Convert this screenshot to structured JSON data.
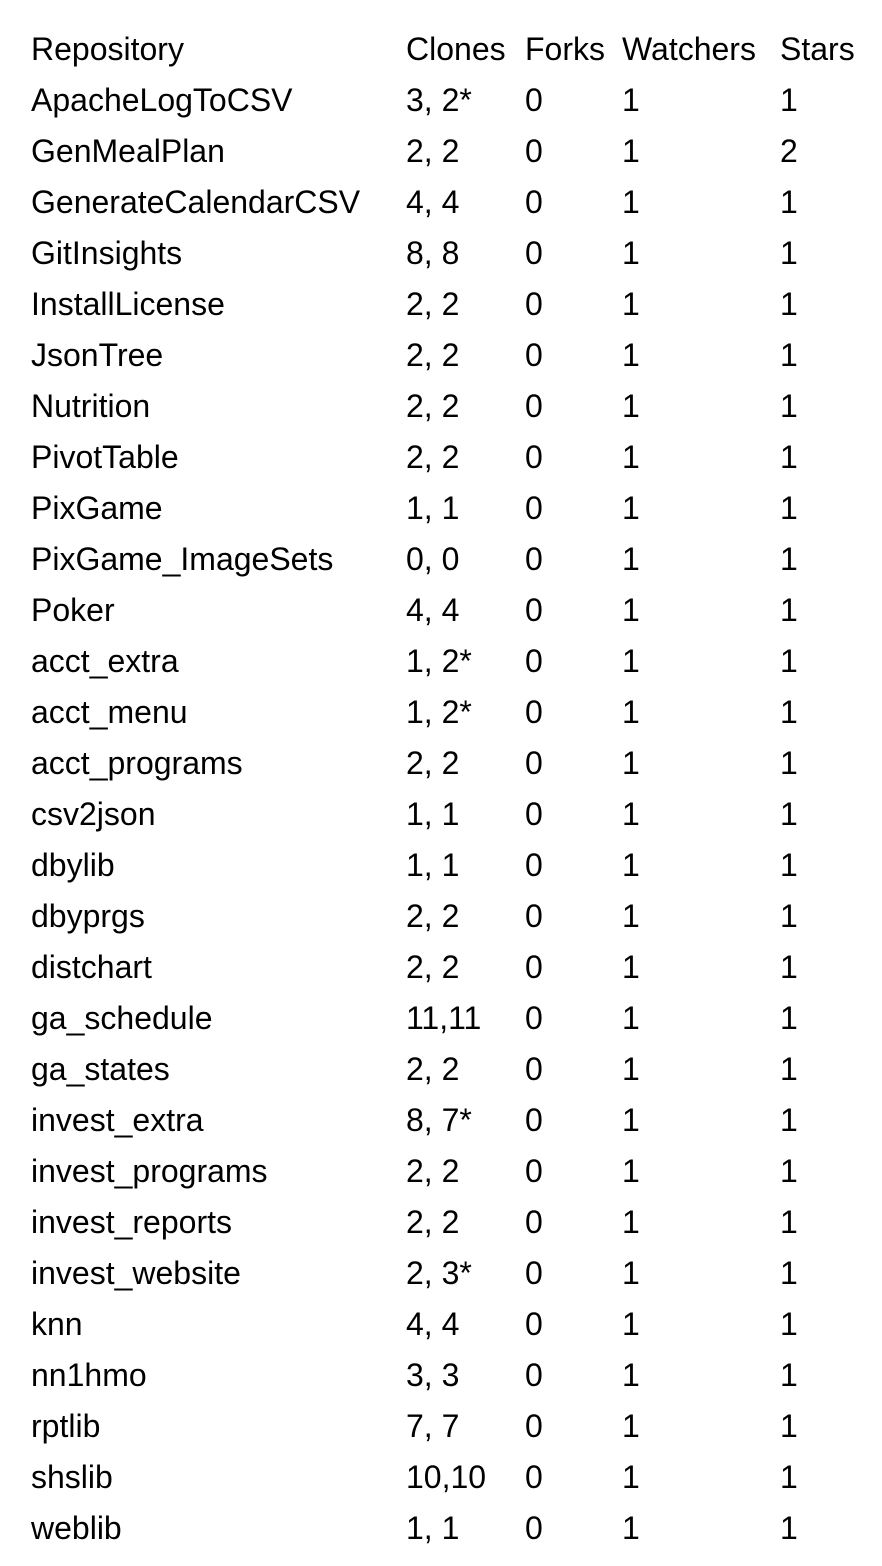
{
  "table": {
    "headers": {
      "repository": "Repository",
      "clones": "Clones",
      "forks": "Forks",
      "watchers": "Watchers",
      "stars": "Stars"
    },
    "rows": [
      {
        "repository": "ApacheLogToCSV",
        "clones": "3, 2*",
        "forks": "0",
        "watchers": "1",
        "stars": "1"
      },
      {
        "repository": "GenMealPlan",
        "clones": "2, 2",
        "forks": "0",
        "watchers": "1",
        "stars": "2"
      },
      {
        "repository": "GenerateCalendarCSV",
        "clones": "4, 4",
        "forks": "0",
        "watchers": "1",
        "stars": "1"
      },
      {
        "repository": "GitInsights",
        "clones": "8, 8",
        "forks": "0",
        "watchers": "1",
        "stars": "1"
      },
      {
        "repository": "InstallLicense",
        "clones": "2, 2",
        "forks": "0",
        "watchers": "1",
        "stars": "1"
      },
      {
        "repository": "JsonTree",
        "clones": "2, 2",
        "forks": "0",
        "watchers": "1",
        "stars": "1"
      },
      {
        "repository": "Nutrition",
        "clones": "2, 2",
        "forks": "0",
        "watchers": "1",
        "stars": "1"
      },
      {
        "repository": "PivotTable",
        "clones": "2, 2",
        "forks": "0",
        "watchers": "1",
        "stars": "1"
      },
      {
        "repository": "PixGame",
        "clones": "1, 1",
        "forks": "0",
        "watchers": "1",
        "stars": "1"
      },
      {
        "repository": "PixGame_ImageSets",
        "clones": "0, 0",
        "forks": "0",
        "watchers": "1",
        "stars": "1"
      },
      {
        "repository": "Poker",
        "clones": "4, 4",
        "forks": "0",
        "watchers": "1",
        "stars": "1"
      },
      {
        "repository": "acct_extra",
        "clones": "1, 2*",
        "forks": "0",
        "watchers": "1",
        "stars": "1"
      },
      {
        "repository": "acct_menu",
        "clones": "1, 2*",
        "forks": "0",
        "watchers": "1",
        "stars": "1"
      },
      {
        "repository": "acct_programs",
        "clones": "2, 2",
        "forks": "0",
        "watchers": "1",
        "stars": "1"
      },
      {
        "repository": "csv2json",
        "clones": "1, 1",
        "forks": "0",
        "watchers": "1",
        "stars": "1"
      },
      {
        "repository": "dbylib",
        "clones": "1, 1",
        "forks": "0",
        "watchers": "1",
        "stars": "1"
      },
      {
        "repository": "dbyprgs",
        "clones": "2, 2",
        "forks": "0",
        "watchers": "1",
        "stars": "1"
      },
      {
        "repository": "distchart",
        "clones": "2, 2",
        "forks": "0",
        "watchers": "1",
        "stars": "1"
      },
      {
        "repository": "ga_schedule",
        "clones": "11,11",
        "forks": "0",
        "watchers": "1",
        "stars": "1"
      },
      {
        "repository": "ga_states",
        "clones": "2, 2",
        "forks": "0",
        "watchers": "1",
        "stars": "1"
      },
      {
        "repository": "invest_extra",
        "clones": "8, 7*",
        "forks": "0",
        "watchers": "1",
        "stars": "1"
      },
      {
        "repository": "invest_programs",
        "clones": "2, 2",
        "forks": "0",
        "watchers": "1",
        "stars": "1"
      },
      {
        "repository": "invest_reports",
        "clones": "2, 2",
        "forks": "0",
        "watchers": "1",
        "stars": "1"
      },
      {
        "repository": "invest_website",
        "clones": "2, 3*",
        "forks": "0",
        "watchers": "1",
        "stars": "1"
      },
      {
        "repository": "knn",
        "clones": "4, 4",
        "forks": "0",
        "watchers": "1",
        "stars": "1"
      },
      {
        "repository": "nn1hmo",
        "clones": "3, 3",
        "forks": "0",
        "watchers": "1",
        "stars": "1"
      },
      {
        "repository": "rptlib",
        "clones": "7, 7",
        "forks": "0",
        "watchers": "1",
        "stars": "1"
      },
      {
        "repository": "shslib",
        "clones": "10,10",
        "forks": "0",
        "watchers": "1",
        "stars": "1"
      },
      {
        "repository": "weblib",
        "clones": "1, 1",
        "forks": "0",
        "watchers": "1",
        "stars": "1"
      }
    ]
  }
}
